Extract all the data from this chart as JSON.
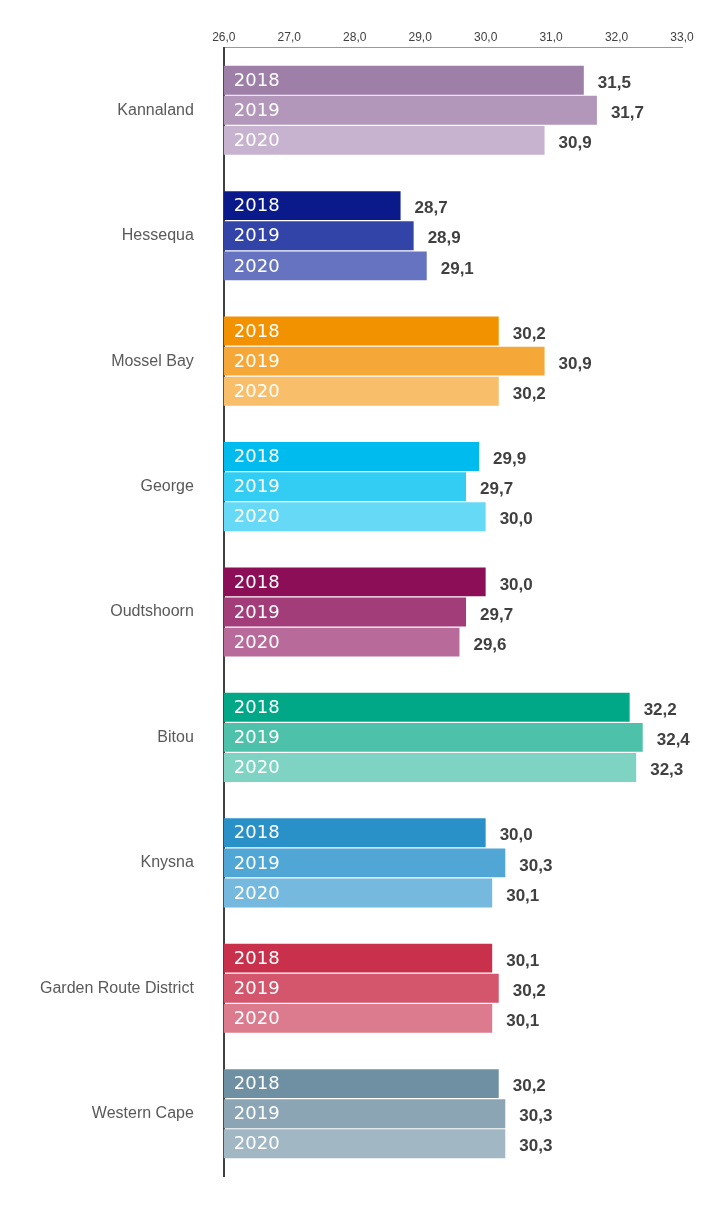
{
  "chart_data": {
    "type": "bar",
    "orientation": "horizontal",
    "categories": [
      "Kannaland",
      "Hessequa",
      "Mossel Bay",
      "George",
      "Oudtshoorn",
      "Bitou",
      "Knysna",
      "Garden Route District",
      "Western Cape"
    ],
    "xlim": [
      26,
      33
    ],
    "xticks": [
      {
        "value": 26,
        "label": "26,0"
      },
      {
        "value": 27,
        "label": "27,0"
      },
      {
        "value": 28,
        "label": "28,0"
      },
      {
        "value": 29,
        "label": "29,0"
      },
      {
        "value": 30,
        "label": "30,0"
      },
      {
        "value": 31,
        "label": "31,0"
      },
      {
        "value": 32,
        "label": "32,0"
      },
      {
        "value": 33,
        "label": "33,0"
      }
    ],
    "series": [
      {
        "name": "2018",
        "values": [
          31.5,
          28.7,
          30.2,
          29.9,
          30.0,
          32.2,
          30.0,
          30.1,
          30.2
        ],
        "value_labels": [
          "31,5",
          "28,7",
          "30,2",
          "29,9",
          "30,0",
          "32,2",
          "30,0",
          "30,1",
          "30,2"
        ],
        "colors": [
          "#9e7fa8",
          "#0a1a8a",
          "#f39200",
          "#00bcee",
          "#8c0e57",
          "#00a887",
          "#2990c8",
          "#c8304c",
          "#6f8fa3"
        ]
      },
      {
        "name": "2019",
        "values": [
          31.7,
          28.9,
          30.9,
          29.7,
          29.7,
          32.4,
          30.3,
          30.2,
          30.3
        ],
        "value_labels": [
          "31,7",
          "28,9",
          "30,9",
          "29,7",
          "29,7",
          "32,4",
          "30,3",
          "30,2",
          "30,3"
        ],
        "colors": [
          "#b297bb",
          "#3344a8",
          "#f5a838",
          "#33ccf3",
          "#a33d7a",
          "#4dc1aa",
          "#50a6d4",
          "#d3566d",
          "#8ca5b5"
        ]
      },
      {
        "name": "2020",
        "values": [
          30.9,
          29.1,
          30.2,
          30.0,
          29.6,
          32.3,
          30.1,
          30.1,
          30.3
        ],
        "value_labels": [
          "30,9",
          "29,1",
          "30,2",
          "30,0",
          "29,6",
          "32,3",
          "30,1",
          "30,1",
          "30,3"
        ],
        "colors": [
          "#c7b3cf",
          "#6673c0",
          "#f8be6a",
          "#66d9f6",
          "#b86b9b",
          "#7fd3c2",
          "#75b9df",
          "#dc7b8d",
          "#a2b7c4"
        ]
      }
    ]
  }
}
